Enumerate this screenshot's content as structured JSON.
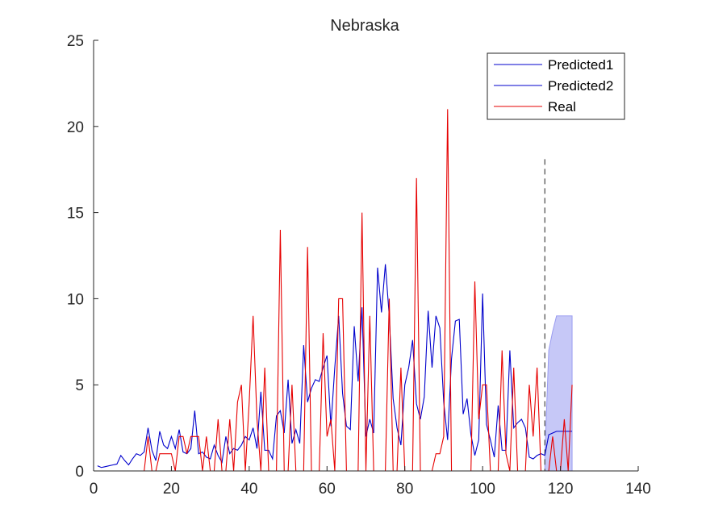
{
  "chart_data": {
    "type": "line",
    "title": "Nebraska",
    "xlabel": "",
    "ylabel": "",
    "xlim": [
      0,
      140
    ],
    "ylim": [
      0,
      25
    ],
    "xticks": [
      0,
      20,
      40,
      60,
      80,
      100,
      120,
      140
    ],
    "yticks": [
      0,
      5,
      10,
      15,
      20,
      25
    ],
    "grid": false,
    "legend_position": "top-right",
    "vline_x": 116,
    "colors": {
      "predicted1": "#0000cc",
      "predicted2": "#0000cc",
      "real": "#e60000",
      "band": "#c6c8f7",
      "band_edge": "#9a9cf0",
      "vline": "#555555"
    },
    "series": [
      {
        "name": "Predicted1",
        "color": "#0000cc",
        "x": [
          1,
          2,
          3,
          4,
          5,
          6,
          7,
          8,
          9,
          10,
          11,
          12,
          13,
          14,
          15,
          16,
          17,
          18,
          19,
          20,
          21,
          22,
          23,
          24,
          25,
          26,
          27,
          28,
          29,
          30,
          31,
          32,
          33,
          34,
          35,
          36,
          37,
          38,
          39,
          40,
          41,
          42,
          43,
          44,
          45,
          46,
          47,
          48,
          49,
          50,
          51,
          52,
          53,
          54,
          55,
          56,
          57,
          58,
          59,
          60,
          61,
          62,
          63,
          64,
          65,
          66,
          67,
          68,
          69,
          70,
          71,
          72,
          73,
          74,
          75,
          76,
          77,
          78,
          79,
          80,
          81,
          82,
          83,
          84,
          85,
          86,
          87,
          88,
          89,
          90,
          91,
          92,
          93,
          94,
          95,
          96,
          97,
          98,
          99,
          100,
          101,
          102,
          103,
          104,
          105,
          106,
          107,
          108,
          109,
          110,
          111,
          112,
          113,
          114,
          115,
          116
        ],
        "values": [
          0.3,
          0.2,
          0.25,
          0.3,
          0.35,
          0.4,
          0.9,
          0.6,
          0.35,
          0.7,
          1.0,
          0.9,
          1.1,
          2.5,
          1.2,
          0.6,
          2.3,
          1.5,
          1.3,
          2.0,
          1.3,
          2.4,
          1.1,
          1.0,
          1.3,
          3.5,
          1.0,
          1.1,
          0.8,
          0.7,
          1.5,
          0.9,
          0.5,
          2.0,
          1.0,
          1.3,
          1.2,
          1.5,
          2.0,
          1.8,
          2.5,
          1.3,
          4.6,
          1.2,
          1.2,
          0.7,
          3.2,
          3.5,
          2.2,
          5.3,
          1.6,
          2.4,
          1.6,
          7.3,
          4.0,
          4.8,
          5.3,
          5.2,
          6.0,
          6.7,
          2.6,
          6.0,
          9.0,
          4.5,
          2.6,
          2.4,
          8.4,
          5.2,
          9.5,
          2.0,
          3.0,
          2.2,
          11.8,
          9.2,
          12.0,
          9.0,
          4.2,
          2.5,
          1.5,
          5.0,
          6.0,
          7.6,
          3.9,
          3.0,
          4.3,
          9.3,
          6.0,
          9.0,
          8.3,
          4.0,
          1.8,
          6.5,
          8.7,
          8.8,
          3.3,
          4.2,
          2.1,
          0.9,
          1.8,
          10.3,
          2.7,
          1.8,
          0.8,
          3.8,
          1.2,
          1.2,
          7.0,
          2.5,
          2.8,
          3.0,
          2.5,
          0.8,
          0.7,
          0.9,
          1.0,
          0.9
        ]
      },
      {
        "name": "Predicted2",
        "color": "#0000cc",
        "x": [
          116,
          117,
          118,
          119,
          120,
          121,
          122,
          123
        ],
        "values": [
          0.9,
          2.1,
          2.2,
          2.3,
          2.3,
          2.3,
          2.3,
          2.3
        ],
        "band_upper": [
          0.9,
          7.0,
          8.1,
          9.0,
          9.0,
          9.0,
          9.0,
          9.0
        ],
        "band_lower": [
          0.0,
          0.0,
          0.0,
          0.0,
          0.0,
          0.0,
          0.0,
          0.0
        ]
      },
      {
        "name": "Real",
        "color": "#e60000",
        "x": [
          1,
          2,
          3,
          4,
          5,
          6,
          7,
          8,
          9,
          10,
          11,
          12,
          13,
          14,
          15,
          16,
          17,
          18,
          19,
          20,
          21,
          22,
          23,
          24,
          25,
          26,
          27,
          28,
          29,
          30,
          31,
          32,
          33,
          34,
          35,
          36,
          37,
          38,
          39,
          40,
          41,
          42,
          43,
          44,
          45,
          46,
          47,
          48,
          49,
          50,
          51,
          52,
          53,
          54,
          55,
          56,
          57,
          58,
          59,
          60,
          61,
          62,
          63,
          64,
          65,
          66,
          67,
          68,
          69,
          70,
          71,
          72,
          73,
          74,
          75,
          76,
          77,
          78,
          79,
          80,
          81,
          82,
          83,
          84,
          85,
          86,
          87,
          88,
          89,
          90,
          91,
          92,
          93,
          94,
          95,
          96,
          97,
          98,
          99,
          100,
          101,
          102,
          103,
          104,
          105,
          106,
          107,
          108,
          109,
          110,
          111,
          112,
          113,
          114,
          115,
          116,
          117,
          118,
          119,
          120,
          121,
          122,
          123
        ],
        "values": [
          0,
          0,
          0,
          0,
          0,
          0,
          0,
          0,
          0,
          0,
          0,
          0,
          0,
          2,
          0,
          0,
          1,
          1,
          1,
          1,
          0,
          2,
          2,
          1,
          2,
          2,
          2,
          0,
          2,
          0,
          0,
          3,
          0,
          0,
          3,
          0,
          4,
          5,
          0,
          4,
          9,
          3,
          0,
          6,
          0,
          0,
          0,
          14,
          0,
          0,
          5,
          0,
          0,
          0,
          13,
          0,
          0,
          0,
          8,
          2,
          3,
          0,
          10,
          10,
          0,
          0,
          0,
          0,
          15,
          0,
          9,
          0,
          0,
          0,
          0,
          10,
          0,
          0,
          6,
          0,
          0,
          0,
          17,
          0,
          0,
          0,
          0,
          1,
          1,
          2,
          21,
          0,
          0,
          0,
          0,
          0,
          0,
          11,
          3,
          5,
          5,
          0,
          0,
          0,
          7,
          1,
          0,
          6,
          0,
          0,
          0,
          5,
          2,
          6,
          0,
          0,
          0,
          2,
          0,
          0,
          3,
          0,
          5
        ]
      }
    ]
  }
}
